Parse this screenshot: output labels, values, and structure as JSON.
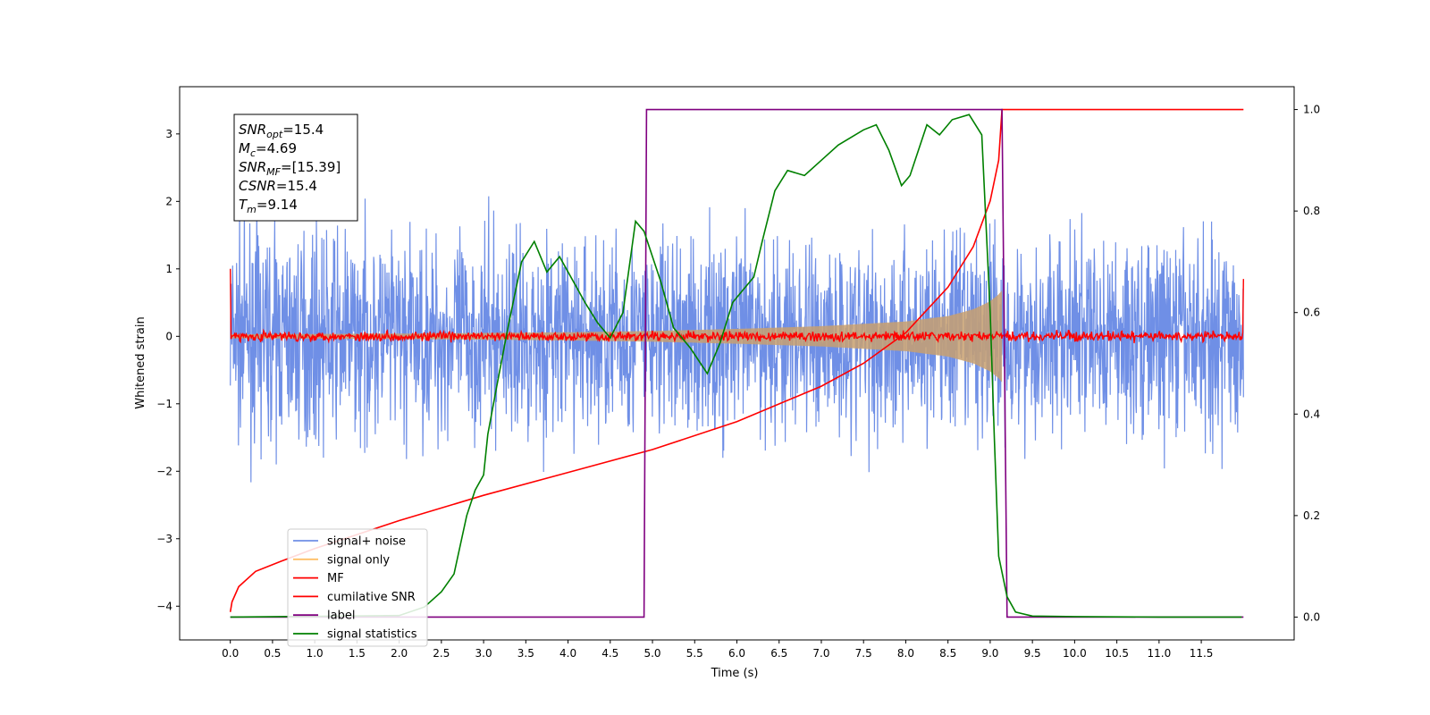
{
  "chart_data": {
    "type": "line",
    "xlabel": "Time (s)",
    "ylabel": "Whitened strain",
    "xlim": [
      -0.6,
      12.6
    ],
    "ylim": [
      -4.5,
      3.7
    ],
    "y2lim": [
      -0.045,
      1.045
    ],
    "x_ticks": [
      "0.0",
      "0.5",
      "1.0",
      "1.5",
      "2.0",
      "2.5",
      "3.0",
      "3.5",
      "4.0",
      "4.5",
      "5.0",
      "5.5",
      "6.0",
      "6.5",
      "7.0",
      "7.5",
      "8.0",
      "8.5",
      "9.0",
      "9.5",
      "10.0",
      "10.5",
      "11.0",
      "11.5"
    ],
    "y_ticks": [
      "3",
      "2",
      "1",
      "0",
      "−1",
      "−2",
      "−3",
      "−4"
    ],
    "y2_ticks": [
      "1.0",
      "0.8",
      "0.6",
      "0.4",
      "0.2",
      "0.0"
    ],
    "annotation": {
      "lines": [
        {
          "sym": "SNR",
          "sub": "opt",
          "val": "=15.4"
        },
        {
          "sym": "M",
          "sub": "c",
          "val": "=4.69"
        },
        {
          "sym": "SNR",
          "sub": "MF",
          "val": "=[15.39]"
        },
        {
          "sym": "CSNR",
          "sub": "",
          "val": "=15.4"
        },
        {
          "sym": "T",
          "sub": "m",
          "val": "=9.14"
        }
      ]
    },
    "legend": {
      "placement": "lower-left",
      "entries": [
        {
          "label": "signal+ noise",
          "color": "#6f8fe6"
        },
        {
          "label": "signal only",
          "color": "#ffbf66"
        },
        {
          "label": "MF",
          "color": "#ff0000"
        },
        {
          "label": "cumilative SNR",
          "color": "#ff0000"
        },
        {
          "label": "label",
          "color": "#800080"
        },
        {
          "label": "signal statistics",
          "color": "#008000"
        }
      ]
    },
    "series": [
      {
        "name": "signal+ noise",
        "axis": "left",
        "color": "#6f8fe6",
        "description_values": {
          "t_start": 0.0,
          "t_end": 12.0,
          "approx_band": [
            -3.0,
            3.0
          ]
        }
      },
      {
        "name": "signal only",
        "axis": "left",
        "color": "#c8a070",
        "envelope": {
          "t": [
            0.0,
            2.0,
            4.0,
            5.0,
            6.0,
            7.0,
            8.0,
            8.5,
            8.8,
            9.0,
            9.1,
            9.14
          ],
          "amp": [
            0.03,
            0.04,
            0.06,
            0.08,
            0.11,
            0.15,
            0.22,
            0.3,
            0.4,
            0.52,
            0.62,
            0.68
          ]
        }
      },
      {
        "name": "MF",
        "axis": "left",
        "color": "#ff0000",
        "t_start": 0.0,
        "t_end": 12.0,
        "level": 0.0,
        "noise": 0.05
      },
      {
        "name": "cumilative SNR",
        "axis": "right",
        "t": [
          0.0,
          0.02,
          0.1,
          0.3,
          0.6,
          1.0,
          2.0,
          3.0,
          4.0,
          5.0,
          6.0,
          7.0,
          7.5,
          8.0,
          8.5,
          8.8,
          9.0,
          9.1,
          9.14,
          12.0
        ],
        "values": [
          0.01,
          0.03,
          0.06,
          0.09,
          0.11,
          0.135,
          0.19,
          0.24,
          0.285,
          0.33,
          0.385,
          0.455,
          0.5,
          0.56,
          0.65,
          0.73,
          0.82,
          0.9,
          1.0,
          1.0
        ]
      },
      {
        "name": "label",
        "axis": "right",
        "t": [
          0.0,
          4.9,
          4.93,
          9.14,
          9.2,
          12.0
        ],
        "values": [
          0.0,
          0.0,
          1.0,
          1.0,
          0.0,
          0.0
        ]
      },
      {
        "name": "signal statistics",
        "axis": "right",
        "t": [
          0.0,
          2.0,
          2.3,
          2.5,
          2.65,
          2.8,
          2.9,
          3.0,
          3.05,
          3.15,
          3.3,
          3.45,
          3.6,
          3.75,
          3.9,
          4.0,
          4.2,
          4.35,
          4.5,
          4.65,
          4.8,
          4.9,
          5.1,
          5.25,
          5.45,
          5.65,
          5.8,
          5.95,
          6.05,
          6.2,
          6.3,
          6.45,
          6.6,
          6.8,
          7.0,
          7.2,
          7.5,
          7.65,
          7.8,
          7.95,
          8.05,
          8.25,
          8.4,
          8.55,
          8.75,
          8.9,
          9.0,
          9.05,
          9.1,
          9.2,
          9.3,
          9.5,
          10.0,
          11.0,
          11.98
        ],
        "values": [
          0.0,
          0.003,
          0.02,
          0.05,
          0.085,
          0.2,
          0.25,
          0.28,
          0.36,
          0.45,
          0.58,
          0.7,
          0.74,
          0.68,
          0.71,
          0.68,
          0.62,
          0.58,
          0.55,
          0.6,
          0.78,
          0.76,
          0.66,
          0.57,
          0.53,
          0.48,
          0.54,
          0.62,
          0.64,
          0.67,
          0.74,
          0.84,
          0.88,
          0.87,
          0.9,
          0.93,
          0.96,
          0.97,
          0.92,
          0.85,
          0.87,
          0.97,
          0.95,
          0.98,
          0.99,
          0.95,
          0.6,
          0.35,
          0.12,
          0.04,
          0.01,
          0.002,
          0.001,
          0.0,
          0.0
        ]
      }
    ]
  }
}
